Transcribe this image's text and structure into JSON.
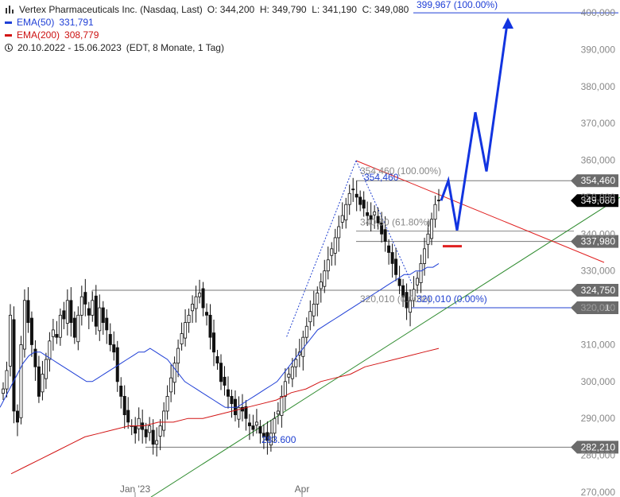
{
  "legend": {
    "instrument": "Vertex Pharmaceuticals Inc. (Nasdaq, Last)",
    "ohlc": "O: 344,200  H: 349,790  L: 341,190  C: 349,080",
    "ema50_label": "EMA(50)",
    "ema50_value": "331,791",
    "ema200_label": "EMA(200)",
    "ema200_value": "308,779",
    "range": "20.10.2022 - 15.06.2023",
    "range_info": "(EDT, 8 Monate, 1 Tag)"
  },
  "colors": {
    "ema50": "#1f3fd6",
    "ema200": "#d21414",
    "trendline_green": "#2e8b2e",
    "trendline_red": "#e02020",
    "projection": "#1234e0",
    "candle": "#111111",
    "level_label_bg": "#6b6b6b",
    "price_label_bg": "#000000"
  },
  "chart_data": {
    "type": "candlestick",
    "ylim": [
      270000,
      400000
    ],
    "y_ticks": [
      "270,000",
      "280,000",
      "290,000",
      "300,000",
      "310,000",
      "320,000",
      "330,000",
      "340,000",
      "350,000",
      "360,000",
      "370,000",
      "380,000",
      "390,000",
      "400,000"
    ],
    "x_ticks": [
      "Jan '23",
      "Apr"
    ],
    "horizontal_levels": [
      {
        "label": "354,460",
        "value": 354460
      },
      {
        "label": "337,980",
        "value": 337980
      },
      {
        "label": "324,750",
        "value": 324750
      },
      {
        "label": "320,010",
        "value": 320010
      },
      {
        "label": "282,210",
        "value": 282210
      }
    ],
    "last_price": {
      "label": "349,080",
      "value": 349080
    },
    "fib_target": {
      "text": "399,967 (100.00%)",
      "value": 399967
    },
    "fib_labels": [
      {
        "text": "354,460 (100.00%)",
        "value": 354460
      },
      {
        "text": "354,460",
        "value": 354460
      },
      {
        "text": "340,80 (61.80%)",
        "value": 340800
      },
      {
        "text": "320,010 (0.00%)",
        "value": 320010
      },
      {
        "text": "320,010 (0.00%)",
        "value": 320010
      },
      {
        "text": "283.600",
        "value": 283600
      }
    ],
    "close_series": [
      298,
      303,
      318,
      292,
      289,
      310,
      322,
      316,
      310,
      304,
      296,
      302,
      306,
      311,
      314,
      312,
      318,
      317,
      322,
      316,
      312,
      318,
      323,
      321,
      318,
      322,
      315,
      320,
      316,
      314,
      310,
      308,
      300,
      296,
      291,
      289,
      288,
      286,
      290,
      287,
      285,
      288,
      283,
      284,
      288,
      292,
      296,
      301,
      305,
      309,
      313,
      316,
      318,
      321,
      323,
      324,
      320,
      318,
      312,
      308,
      305,
      300,
      299,
      296,
      294,
      291,
      293,
      292,
      290,
      288,
      287,
      289,
      286,
      285,
      284,
      286,
      290,
      292,
      296,
      300,
      302,
      304,
      306,
      308,
      312,
      315,
      319,
      321,
      324,
      327,
      330,
      333,
      336,
      339,
      342,
      345,
      348,
      351,
      352,
      350,
      348,
      347,
      345,
      344,
      346,
      343,
      340,
      338,
      335,
      332,
      329,
      326,
      323,
      320,
      322,
      325,
      328,
      332,
      336,
      340,
      344,
      348,
      349
    ],
    "ema50_series": [
      293,
      296,
      299,
      302,
      305,
      307,
      308,
      308,
      307,
      306,
      305,
      304,
      303,
      302,
      301,
      300,
      300,
      301,
      302,
      303,
      304,
      305,
      306,
      307,
      308,
      308,
      309,
      308,
      307,
      306,
      304,
      302,
      300,
      299,
      298,
      297,
      296,
      295,
      294,
      293,
      293,
      293,
      294,
      295,
      296,
      297,
      298,
      299,
      300,
      302,
      304,
      306,
      308,
      310,
      312,
      314,
      315,
      316,
      317,
      318,
      319,
      320,
      321,
      322,
      323,
      324,
      325,
      326,
      327,
      328,
      329,
      329,
      330,
      330,
      331,
      331,
      332
    ],
    "ema200_series": [
      275,
      277,
      279,
      281,
      283,
      285,
      286,
      287,
      288,
      288,
      289,
      289,
      290,
      290,
      291,
      292,
      293,
      294,
      295,
      297,
      298,
      300,
      301,
      302,
      304,
      305,
      306,
      307,
      308,
      309
    ],
    "projection_path": [
      349080,
      354460,
      341000,
      373000,
      357000,
      397000
    ]
  }
}
